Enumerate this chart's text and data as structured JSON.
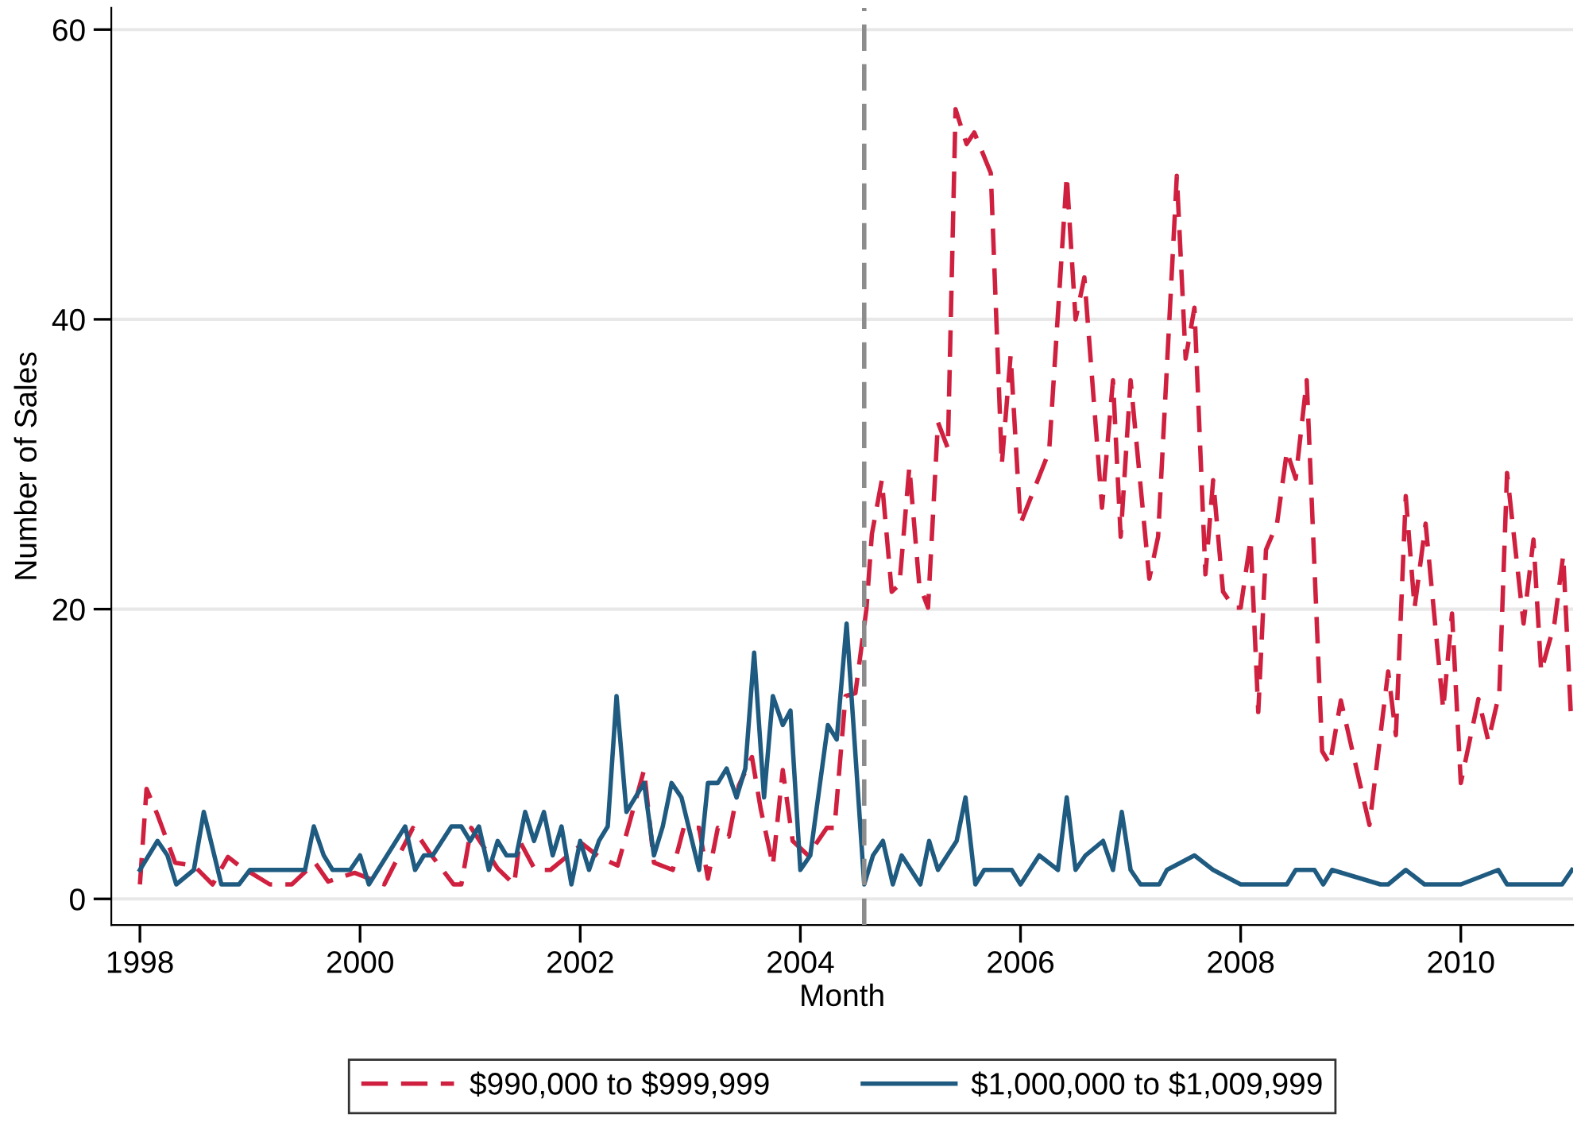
{
  "chart_data": {
    "type": "line",
    "xlabel": "Month",
    "ylabel": "Number of Sales",
    "xlim": [
      1997.74,
      2011.02
    ],
    "xticks": [
      1998,
      2000,
      2002,
      2004,
      2006,
      2008,
      2010
    ],
    "ylim": [
      -1.8,
      61.5
    ],
    "yticks": [
      0,
      20,
      40,
      60
    ],
    "grid": "y",
    "legend": "bottom",
    "marker": "none",
    "ref_lines": [
      {
        "axis": "x",
        "value": 2004.58,
        "color": "#8c8c8c",
        "line_style": "dashed"
      }
    ],
    "series": [
      {
        "name": "$990,000 to $999,999",
        "color": "#d0203f",
        "line_style": "dashed",
        "x": [
          1998.0,
          1998.06,
          1998.16,
          1998.32,
          1998.49,
          1998.66,
          1998.8,
          1998.9,
          1999.18,
          1999.38,
          1999.59,
          1999.71,
          1999.95,
          2000.22,
          2000.48,
          2000.63,
          2000.85,
          2000.92,
          2001.01,
          2001.25,
          2001.4,
          2001.45,
          2001.59,
          2001.73,
          2002.02,
          2002.17,
          2002.34,
          2002.58,
          2002.67,
          2002.84,
          2002.94,
          2003.08,
          2003.16,
          2003.25,
          2003.35,
          2003.44,
          2003.56,
          2003.64,
          2003.75,
          2003.84,
          2003.93,
          2004.07,
          2004.24,
          2004.31,
          2004.41,
          2004.5,
          2004.6,
          2004.65,
          2004.74,
          2004.83,
          2004.9,
          2004.99,
          2005.08,
          2005.16,
          2005.25,
          2005.34,
          2005.41,
          2005.51,
          2005.58,
          2005.73,
          2005.83,
          2005.91,
          2006.0,
          2006.26,
          2006.42,
          2006.5,
          2006.58,
          2006.74,
          2006.84,
          2006.91,
          2007.0,
          2007.17,
          2007.25,
          2007.42,
          2007.5,
          2007.58,
          2007.68,
          2007.75,
          2007.84,
          2007.94,
          2008.0,
          2008.09,
          2008.16,
          2008.23,
          2008.33,
          2008.42,
          2008.5,
          2008.6,
          2008.74,
          2008.81,
          2008.91,
          2009.17,
          2009.34,
          2009.41,
          2009.5,
          2009.58,
          2009.68,
          2009.84,
          2009.92,
          2010.0,
          2010.16,
          2010.25,
          2010.35,
          2010.42,
          2010.57,
          2010.66,
          2010.73,
          2010.85,
          2010.93,
          2011.0
        ],
        "values": [
          1,
          7.6,
          5.8,
          2.5,
          2.3,
          1,
          2.9,
          2.3,
          1,
          1,
          2.5,
          1.2,
          1.8,
          1,
          4.9,
          3.2,
          1,
          1,
          4.9,
          2.1,
          1,
          4,
          2,
          2,
          3.8,
          2.9,
          2.3,
          8.9,
          2.5,
          2,
          4.9,
          4.9,
          1.4,
          4.9,
          4.3,
          7.8,
          9.8,
          6.2,
          2.3,
          8.9,
          4,
          3,
          4.9,
          4.9,
          14,
          14.2,
          20,
          25.2,
          28.9,
          21.2,
          21.7,
          29.8,
          21.7,
          20.1,
          32.9,
          31.1,
          54.5,
          52.1,
          52.9,
          50.1,
          30,
          37.5,
          25.9,
          30.9,
          49.9,
          40,
          42.9,
          27,
          35.8,
          25,
          35.8,
          22.1,
          25,
          49.9,
          37.3,
          40.8,
          22.4,
          28.9,
          21.2,
          20.1,
          20.1,
          24.8,
          12.9,
          24.1,
          25.9,
          30.9,
          29,
          35.8,
          10.2,
          9.3,
          13.7,
          5.1,
          15.7,
          11.3,
          27.8,
          20.1,
          25.9,
          13.1,
          19.7,
          8,
          13.8,
          10.9,
          14.2,
          29.4,
          19,
          24.8,
          15.7,
          19,
          23.7,
          12.7
        ]
      },
      {
        "name": "$1,000,000 to $1,009,999",
        "color": "#1f5b80",
        "line_style": "solid",
        "x": [
          1998.0,
          1998.16,
          1998.25,
          1998.33,
          1998.49,
          1998.58,
          1998.74,
          1998.9,
          1999.0,
          1999.5,
          1999.58,
          1999.67,
          1999.75,
          1999.91,
          2000.0,
          2000.08,
          2000.41,
          2000.5,
          2000.58,
          2000.66,
          2000.83,
          2000.92,
          2001.0,
          2001.08,
          2001.17,
          2001.25,
          2001.33,
          2001.42,
          2001.5,
          2001.58,
          2001.67,
          2001.75,
          2001.83,
          2001.92,
          2002.0,
          2002.08,
          2002.17,
          2002.25,
          2002.33,
          2002.42,
          2002.58,
          2002.67,
          2002.75,
          2002.83,
          2002.92,
          2003.08,
          2003.16,
          2003.25,
          2003.33,
          2003.42,
          2003.5,
          2003.58,
          2003.67,
          2003.75,
          2003.84,
          2003.91,
          2004.0,
          2004.09,
          2004.25,
          2004.33,
          2004.42,
          2004.58,
          2004.66,
          2004.75,
          2004.84,
          2004.92,
          2005.09,
          2005.17,
          2005.25,
          2005.42,
          2005.5,
          2005.59,
          2005.67,
          2005.92,
          2006.0,
          2006.17,
          2006.34,
          2006.42,
          2006.5,
          2006.59,
          2006.75,
          2006.84,
          2006.92,
          2007.0,
          2007.09,
          2007.26,
          2007.33,
          2007.58,
          2007.75,
          2008.0,
          2008.42,
          2008.5,
          2008.67,
          2008.75,
          2008.83,
          2009.27,
          2009.34,
          2009.5,
          2009.67,
          2010.0,
          2010.34,
          2010.42,
          2010.92,
          2011.01
        ],
        "values": [
          2,
          4,
          3,
          1,
          2,
          6,
          1,
          1,
          2,
          2,
          5,
          3,
          2,
          2,
          3,
          1,
          5,
          2,
          3,
          3,
          5,
          5,
          4,
          5,
          2,
          4,
          3,
          3,
          6,
          4,
          6,
          3,
          5,
          1,
          4,
          2,
          4,
          5,
          14,
          6,
          8,
          3,
          5,
          8,
          7,
          2,
          8,
          8,
          9,
          7,
          9,
          17,
          7,
          14,
          12,
          13,
          2,
          3,
          12,
          11,
          19,
          1,
          3,
          4,
          1,
          3,
          1,
          4,
          2,
          4,
          7,
          1,
          2,
          2,
          1,
          3,
          2,
          7,
          2,
          3,
          4,
          2,
          6,
          2,
          1,
          1,
          2,
          3,
          2,
          1,
          1,
          2,
          2,
          1,
          2,
          1,
          1,
          2,
          1,
          1,
          2,
          1,
          1,
          2
        ]
      }
    ]
  }
}
